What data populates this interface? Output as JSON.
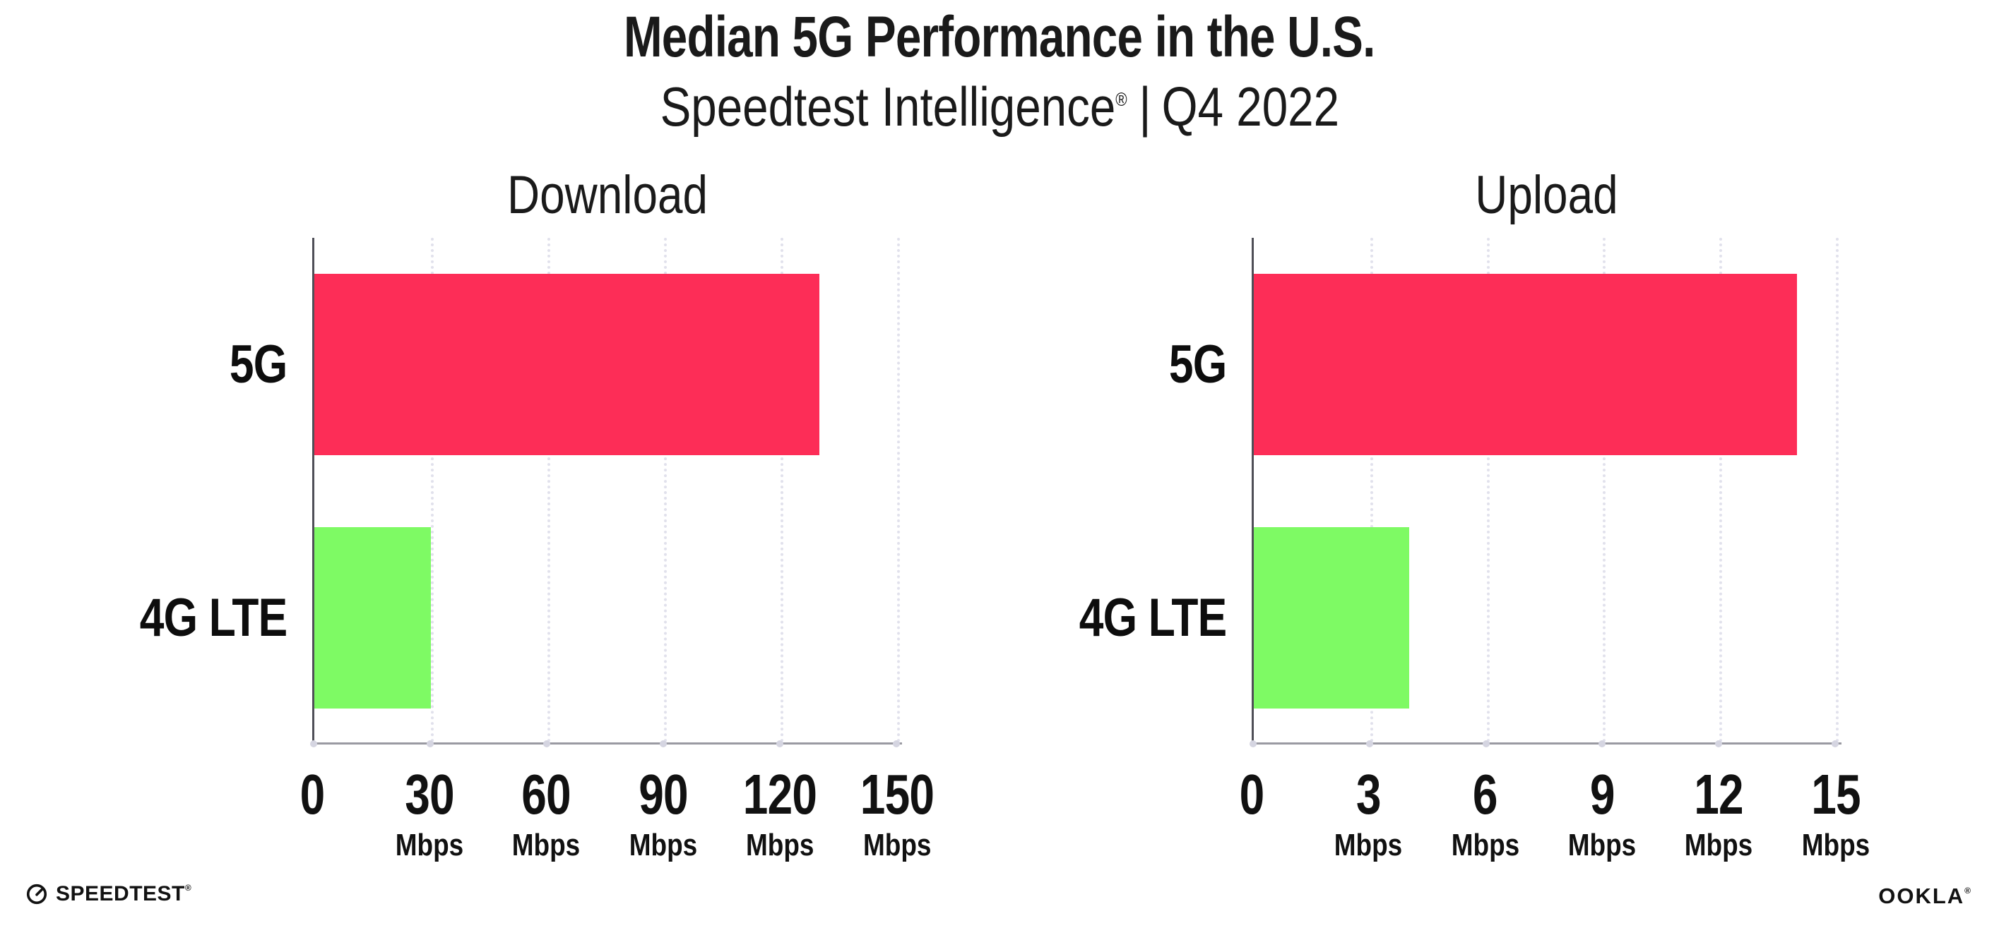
{
  "page": {
    "title": "Median 5G Performance in the U.S.",
    "subtitle": {
      "brand": "Speedtest Intelligence",
      "registered": "®",
      "separator": "|",
      "period": "Q4 2022"
    }
  },
  "colors": {
    "bar_5g": "#FD2D57",
    "bar_4g_lte": "#7EFA64",
    "y_axis_line": "#4F4F57",
    "x_axis_line": "#9A9AA2",
    "gridline_dots": "#E1E1EC",
    "tick_dots": "#D5D5E1",
    "text": "#1A1A1A"
  },
  "chart_data": [
    {
      "type": "bar",
      "orientation": "horizontal",
      "title": "Download",
      "categories": [
        "5G",
        "4G LTE"
      ],
      "values": [
        130,
        30
      ],
      "unit": "Mbps",
      "xticks": [
        0,
        30,
        60,
        90,
        120,
        150
      ],
      "xlim": [
        0,
        151.3
      ],
      "grid": "dotted-vertical",
      "legend": "none"
    },
    {
      "type": "bar",
      "orientation": "horizontal",
      "title": "Upload",
      "categories": [
        "5G",
        "4G LTE"
      ],
      "values": [
        14,
        4
      ],
      "unit": "Mbps",
      "xticks": [
        0,
        3,
        6,
        9,
        12,
        15
      ],
      "xlim": [
        0,
        15.15
      ],
      "grid": "dotted-vertical",
      "legend": "none"
    }
  ],
  "footer": {
    "speedtest_label": "SPEEDTEST",
    "speedtest_registered": "®",
    "speedtest_icon": "gauge-icon",
    "ookla_label": "OOKLA",
    "ookla_registered": "®"
  }
}
